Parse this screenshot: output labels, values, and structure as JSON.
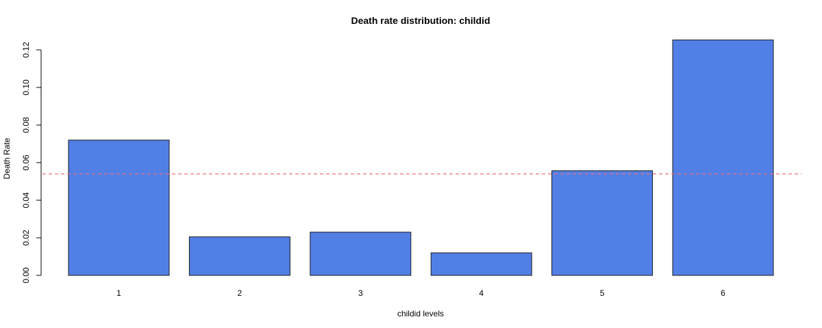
{
  "chart_data": {
    "type": "bar",
    "title": "Death rate distribution: childid",
    "xlabel": "childid levels",
    "ylabel": "Death Rate",
    "categories": [
      "1",
      "2",
      "3",
      "4",
      "5",
      "6"
    ],
    "values": [
      0.072,
      0.0205,
      0.023,
      0.012,
      0.0557,
      0.1253
    ],
    "ylim": [
      0,
      0.12
    ],
    "yticks": [
      0.0,
      0.02,
      0.04,
      0.06,
      0.08,
      0.1,
      0.12
    ],
    "ytick_labels": [
      "0.00",
      "0.02",
      "0.04",
      "0.06",
      "0.08",
      "0.10",
      "0.12"
    ],
    "reference_line": {
      "value": 0.054,
      "style": "dashed",
      "color": "#e8707b"
    },
    "bar_color": "#527fe6",
    "bar_border_color": "#1a1a1a",
    "grid": false,
    "legend": "none"
  }
}
